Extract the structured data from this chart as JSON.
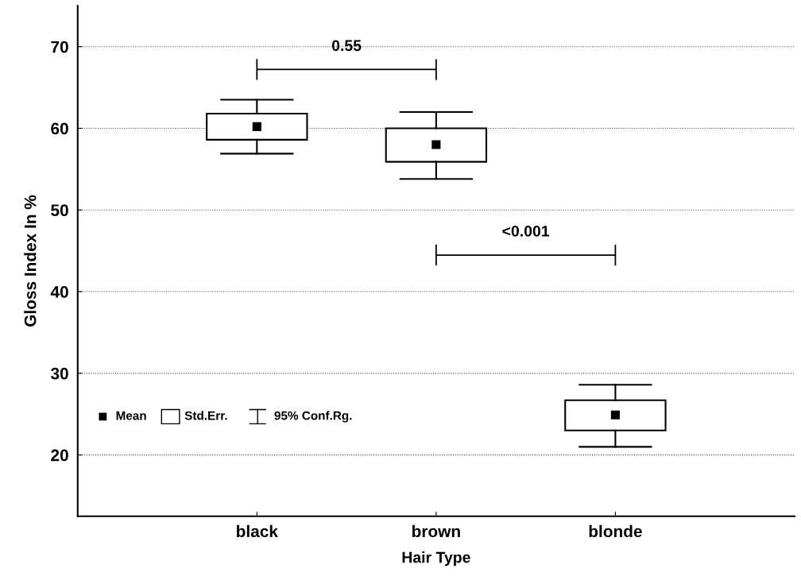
{
  "chart_data": {
    "type": "box",
    "xlabel": "Hair Type",
    "ylabel": "Gloss Index In %",
    "categories": [
      "black",
      "brown",
      "blonde"
    ],
    "boxes": [
      {
        "low": 56.9,
        "q1": 58.6,
        "q3": 61.8,
        "high": 63.5,
        "mean": 60.2
      },
      {
        "low": 53.8,
        "q1": 55.9,
        "q3": 60.0,
        "high": 62.0,
        "mean": 58.0
      },
      {
        "low": 21.0,
        "q1": 23.0,
        "q3": 26.7,
        "high": 28.6,
        "mean": 24.9
      }
    ],
    "color": "#000000",
    "ylim": [
      12.5,
      75
    ],
    "yticks": [
      20,
      30,
      40,
      50,
      60,
      70
    ],
    "grid": "y",
    "marker": "square",
    "annotations": [
      "0.55",
      "<0.001",
      "Mean",
      "Std.Err.",
      "95% Conf.Rg."
    ]
  }
}
